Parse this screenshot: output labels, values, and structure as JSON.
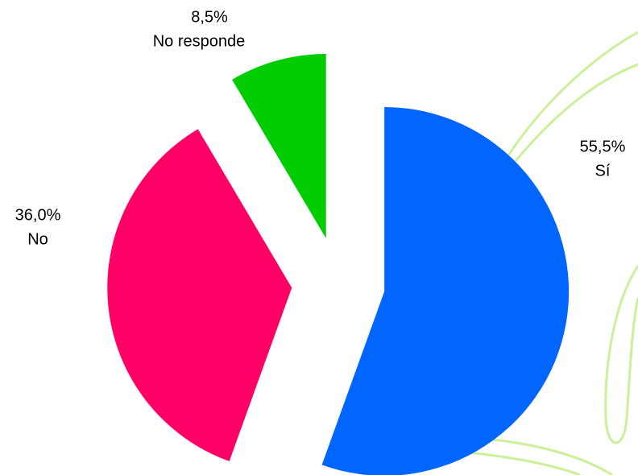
{
  "chart_data": {
    "type": "pie",
    "categories": [
      "Sí",
      "No",
      "No responde"
    ],
    "values": [
      55.5,
      36.0,
      8.5
    ],
    "value_labels": [
      "55,5%",
      "36,0%",
      "8,5%"
    ],
    "colors": [
      "#0066ff",
      "#ff0066",
      "#00cc00"
    ],
    "exploded": true
  }
}
